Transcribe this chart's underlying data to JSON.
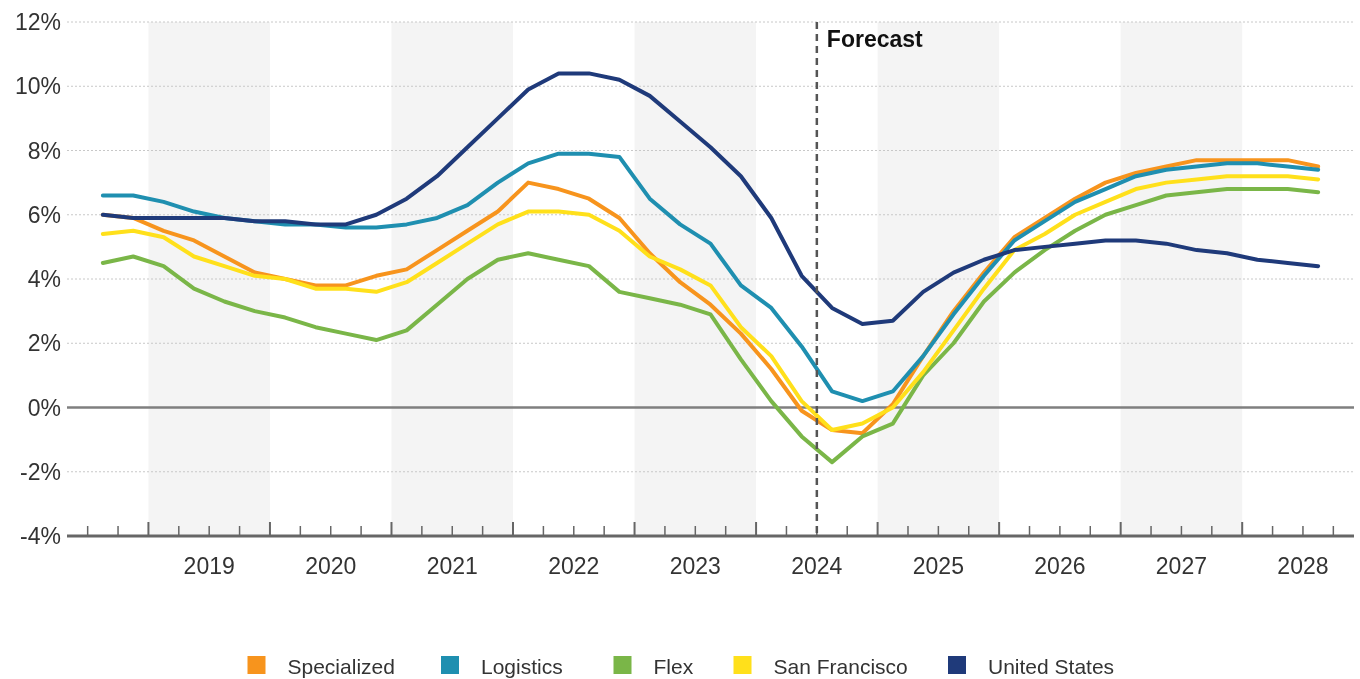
{
  "chart_data": {
    "type": "line",
    "x": [
      2018.625,
      2018.875,
      2019.125,
      2019.375,
      2019.625,
      2019.875,
      2020.125,
      2020.375,
      2020.625,
      2020.875,
      2021.125,
      2021.375,
      2021.625,
      2021.875,
      2022.125,
      2022.375,
      2022.625,
      2022.875,
      2023.125,
      2023.375,
      2023.625,
      2023.875,
      2024.125,
      2024.375,
      2024.625,
      2024.875,
      2025.125,
      2025.375,
      2025.625,
      2025.875,
      2026.125,
      2026.375,
      2026.625,
      2026.875,
      2027.125,
      2027.375,
      2027.625,
      2027.875,
      2028.125,
      2028.375,
      2028.625
    ],
    "series": [
      {
        "name": "Specialized",
        "color": "#f7941d",
        "values": [
          6.0,
          5.9,
          5.5,
          5.2,
          4.7,
          4.2,
          4.0,
          3.8,
          3.8,
          4.1,
          4.3,
          4.9,
          5.5,
          6.1,
          7.0,
          6.8,
          6.5,
          5.9,
          4.8,
          3.9,
          3.2,
          2.3,
          1.2,
          -0.1,
          -0.7,
          -0.8,
          0.1,
          1.6,
          3.0,
          4.2,
          5.3,
          5.9,
          6.5,
          7.0,
          7.3,
          7.5,
          7.7,
          7.7,
          7.7,
          7.7,
          7.5
        ]
      },
      {
        "name": "Logistics",
        "color": "#1f8fb0",
        "values": [
          6.6,
          6.6,
          6.4,
          6.1,
          5.9,
          5.8,
          5.7,
          5.7,
          5.6,
          5.6,
          5.7,
          5.9,
          6.3,
          7.0,
          7.6,
          7.9,
          7.9,
          7.8,
          6.5,
          5.7,
          5.1,
          3.8,
          3.1,
          1.9,
          0.5,
          0.2,
          0.5,
          1.6,
          2.9,
          4.1,
          5.2,
          5.8,
          6.4,
          6.8,
          7.2,
          7.4,
          7.5,
          7.6,
          7.6,
          7.5,
          7.4
        ]
      },
      {
        "name": "Flex",
        "color": "#7ab648",
        "values": [
          4.5,
          4.7,
          4.4,
          3.7,
          3.3,
          3.0,
          2.8,
          2.5,
          2.3,
          2.1,
          2.4,
          3.2,
          4.0,
          4.6,
          4.8,
          4.6,
          4.4,
          3.6,
          3.4,
          3.2,
          2.9,
          1.5,
          0.2,
          -0.9,
          -1.7,
          -0.9,
          -0.5,
          1.0,
          2.0,
          3.3,
          4.2,
          4.9,
          5.5,
          6.0,
          6.3,
          6.6,
          6.7,
          6.8,
          6.8,
          6.8,
          6.7
        ]
      },
      {
        "name": "San Francisco",
        "color": "#ffe01b",
        "values": [
          5.4,
          5.5,
          5.3,
          4.7,
          4.4,
          4.1,
          4.0,
          3.7,
          3.7,
          3.6,
          3.9,
          4.5,
          5.1,
          5.7,
          6.1,
          6.1,
          6.0,
          5.5,
          4.7,
          4.3,
          3.8,
          2.5,
          1.6,
          0.2,
          -0.7,
          -0.5,
          0.0,
          1.1,
          2.4,
          3.7,
          4.9,
          5.4,
          6.0,
          6.4,
          6.8,
          7.0,
          7.1,
          7.2,
          7.2,
          7.2,
          7.1
        ]
      },
      {
        "name": "United States",
        "color": "#1f3a7a",
        "values": [
          6.0,
          5.9,
          5.9,
          5.9,
          5.9,
          5.8,
          5.8,
          5.7,
          5.7,
          6.0,
          6.5,
          7.2,
          8.1,
          9.0,
          9.9,
          10.4,
          10.4,
          10.2,
          9.7,
          8.9,
          8.1,
          7.2,
          5.9,
          4.1,
          3.1,
          2.6,
          2.7,
          3.6,
          4.2,
          4.6,
          4.9,
          5.0,
          5.1,
          5.2,
          5.2,
          5.1,
          4.9,
          4.8,
          4.6,
          4.5,
          4.4
        ]
      }
    ],
    "xlim": [
      2018.33,
      2028.92
    ],
    "xticks": [
      {
        "value": 2018.5,
        "label": null
      },
      {
        "value": 2018.75,
        "label": null
      },
      {
        "value": 2019,
        "label": null
      },
      {
        "value": 2019.25,
        "label": null
      },
      {
        "value": 2019.5,
        "label": "2019"
      },
      {
        "value": 2019.75,
        "label": null
      },
      {
        "value": 2020,
        "label": null
      },
      {
        "value": 2020.25,
        "label": null
      },
      {
        "value": 2020.5,
        "label": "2020"
      },
      {
        "value": 2020.75,
        "label": null
      },
      {
        "value": 2021,
        "label": null
      },
      {
        "value": 2021.25,
        "label": null
      },
      {
        "value": 2021.5,
        "label": "2021"
      },
      {
        "value": 2021.75,
        "label": null
      },
      {
        "value": 2022,
        "label": null
      },
      {
        "value": 2022.25,
        "label": null
      },
      {
        "value": 2022.5,
        "label": "2022"
      },
      {
        "value": 2022.75,
        "label": null
      },
      {
        "value": 2023,
        "label": null
      },
      {
        "value": 2023.25,
        "label": null
      },
      {
        "value": 2023.5,
        "label": "2023"
      },
      {
        "value": 2023.75,
        "label": null
      },
      {
        "value": 2024,
        "label": null
      },
      {
        "value": 2024.25,
        "label": null
      },
      {
        "value": 2024.5,
        "label": "2024"
      },
      {
        "value": 2024.75,
        "label": null
      },
      {
        "value": 2025,
        "label": null
      },
      {
        "value": 2025.25,
        "label": null
      },
      {
        "value": 2025.5,
        "label": "2025"
      },
      {
        "value": 2025.75,
        "label": null
      },
      {
        "value": 2026,
        "label": null
      },
      {
        "value": 2026.25,
        "label": null
      },
      {
        "value": 2026.5,
        "label": "2026"
      },
      {
        "value": 2026.75,
        "label": null
      },
      {
        "value": 2027,
        "label": null
      },
      {
        "value": 2027.25,
        "label": null
      },
      {
        "value": 2027.5,
        "label": "2027"
      },
      {
        "value": 2027.75,
        "label": null
      },
      {
        "value": 2028,
        "label": null
      },
      {
        "value": 2028.25,
        "label": null
      },
      {
        "value": 2028.5,
        "label": "2028"
      },
      {
        "value": 2028.75,
        "label": null
      }
    ],
    "ylim": [
      -4,
      12
    ],
    "yticks": [
      {
        "value": -4,
        "label": "-4%"
      },
      {
        "value": -2,
        "label": "-2%"
      },
      {
        "value": 0,
        "label": "0%"
      },
      {
        "value": 2,
        "label": "2%"
      },
      {
        "value": 4,
        "label": "4%"
      },
      {
        "value": 6,
        "label": "6%"
      },
      {
        "value": 8,
        "label": "8%"
      },
      {
        "value": 10,
        "label": "10%"
      },
      {
        "value": 12,
        "label": "12%"
      }
    ],
    "grid": "y",
    "legend": "bottom",
    "marker": "none",
    "line_style": "solid",
    "bands": [
      {
        "axis": "x",
        "from": 2019,
        "to": 2020,
        "label": null,
        "color": "#f4f4f4"
      },
      {
        "axis": "x",
        "from": 2021,
        "to": 2022,
        "label": null,
        "color": "#f4f4f4"
      },
      {
        "axis": "x",
        "from": 2023,
        "to": 2024,
        "label": null,
        "color": "#f4f4f4"
      },
      {
        "axis": "x",
        "from": 2025,
        "to": 2026,
        "label": null,
        "color": "#f4f4f4"
      },
      {
        "axis": "x",
        "from": 2027,
        "to": 2028,
        "label": null,
        "color": "#f4f4f4"
      }
    ],
    "ref_lines": [
      {
        "axis": "y",
        "value": 0,
        "label": null,
        "color": "#7f7f7f",
        "line_style": "solid"
      },
      {
        "axis": "x",
        "value": 2024.5,
        "label": "Forecast",
        "color": "#555555",
        "line_style": "dashed"
      }
    ]
  }
}
